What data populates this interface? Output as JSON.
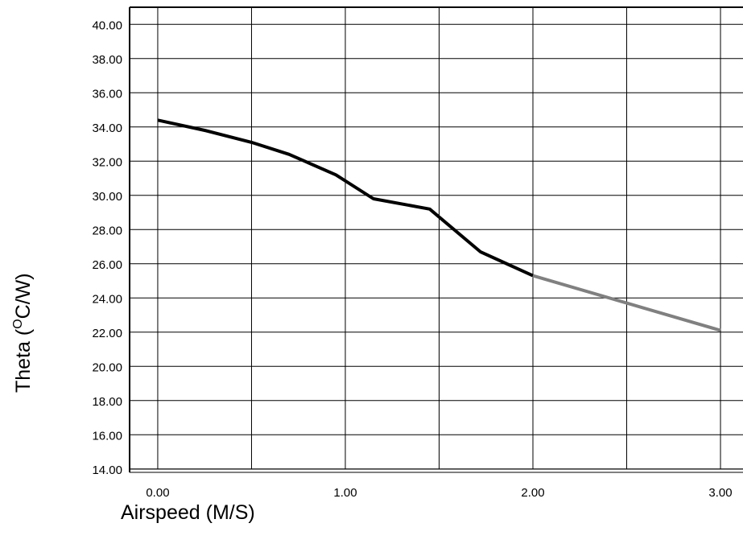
{
  "chart_data": {
    "type": "line",
    "title": "",
    "xlabel": "Airspeed (M/S)",
    "ylabel_main": "Theta (",
    "ylabel_sup": "O",
    "ylabel_rest": "C/W)",
    "xlim": [
      -0.15,
      3.12
    ],
    "ylim": [
      13.8,
      41.0
    ],
    "grid": true,
    "x_gridlines": [
      0.0,
      0.5,
      1.0,
      1.5,
      2.0,
      2.5,
      3.0
    ],
    "y_gridlines": [
      14,
      16,
      18,
      20,
      22,
      24,
      26,
      28,
      30,
      32,
      34,
      36,
      38,
      40
    ],
    "x_ticks": [
      "0.00",
      "1.00",
      "2.00",
      "3.00"
    ],
    "y_ticks": [
      "14.00",
      "16.00",
      "18.00",
      "20.00",
      "22.00",
      "24.00",
      "26.00",
      "28.00",
      "30.00",
      "32.00",
      "34.00",
      "36.00",
      "38.00",
      "40.00"
    ],
    "series": [
      {
        "color": "#000000",
        "x": [
          0.0,
          0.25,
          0.5,
          0.7,
          0.95,
          1.15,
          1.45,
          1.72,
          2.0
        ],
        "y": [
          34.4,
          33.8,
          33.1,
          32.4,
          31.2,
          29.8,
          29.2,
          26.7,
          25.3
        ]
      },
      {
        "color": "#808080",
        "x": [
          2.0,
          2.5,
          3.0
        ],
        "y": [
          25.3,
          23.7,
          22.1
        ]
      }
    ]
  }
}
